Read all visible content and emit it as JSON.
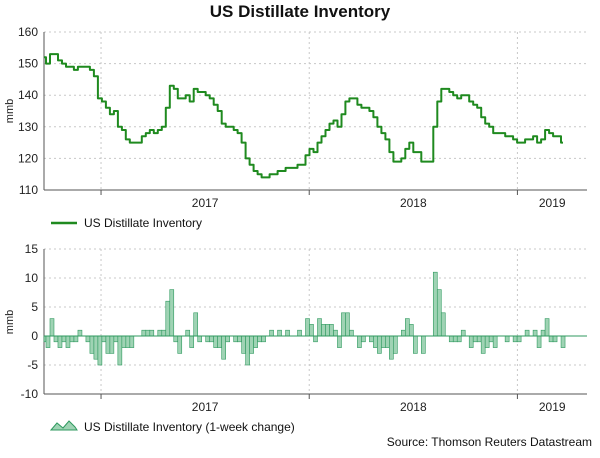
{
  "title": "US Distillate Inventory",
  "source": "Source: Thomson Reuters Datastream",
  "colors": {
    "line": "#1f8a1f",
    "bar_fill": "#9fd3b4",
    "bar_stroke": "#2f9a5f",
    "grid": "#c8c8c8",
    "axis": "#555555"
  },
  "chart_data": [
    {
      "type": "line",
      "title": "US Distillate Inventory",
      "ylabel": "mmb",
      "ylim": [
        110,
        160
      ],
      "yticks": [
        110,
        120,
        130,
        140,
        150,
        160
      ],
      "x_tick_labels": [
        "2017",
        "2018",
        "2019"
      ],
      "grid": true,
      "legend_position": "bottom-left",
      "series": [
        {
          "name": "US Distillate Inventory",
          "x_start": "2016-09-23",
          "x_step_days": 7,
          "values": [
            152,
            150,
            153,
            153,
            151,
            150,
            149,
            149,
            148,
            149,
            149,
            149,
            148,
            146,
            139,
            138,
            136,
            134,
            135,
            130,
            129,
            126,
            125,
            125,
            125,
            127,
            128,
            129,
            128,
            129,
            130,
            136,
            143,
            142,
            139,
            139,
            140,
            138,
            142,
            141,
            141,
            140,
            139,
            137,
            135,
            131,
            130,
            130,
            129,
            128,
            125,
            120,
            118,
            116,
            115,
            114,
            114,
            115,
            115,
            116,
            116,
            117,
            117,
            117,
            118,
            118,
            121,
            123,
            122,
            125,
            127,
            129,
            131,
            132,
            130,
            134,
            138,
            139,
            139,
            137,
            136,
            136,
            135,
            133,
            130,
            128,
            126,
            122,
            119,
            119,
            120,
            123,
            125,
            122,
            122,
            119,
            119,
            119,
            130,
            138,
            142,
            142,
            141,
            140,
            139,
            140,
            140,
            138,
            137,
            136,
            133,
            131,
            130,
            128,
            128,
            128,
            127,
            127,
            126,
            125,
            125,
            126,
            126,
            127,
            125,
            126,
            129,
            128,
            127,
            127,
            125
          ]
        }
      ]
    },
    {
      "type": "area",
      "ylabel": "mmb",
      "ylim": [
        -10,
        15
      ],
      "yticks": [
        -10,
        -5,
        0,
        5,
        10,
        15
      ],
      "x_tick_labels": [
        "2017",
        "2018",
        "2019"
      ],
      "grid": true,
      "legend_position": "bottom-left",
      "series": [
        {
          "name": "US Distillate Inventory (1-week change)",
          "x_start": "2016-09-23",
          "x_step_days": 7,
          "values": [
            -1,
            -2,
            3,
            -1,
            -2,
            -1,
            -2,
            -1,
            -1,
            1,
            0,
            -1,
            -3,
            -4,
            -5,
            -1,
            -3,
            -3,
            -1,
            -5,
            -2,
            -2,
            -2,
            0,
            0,
            1,
            1,
            1,
            0,
            1,
            1,
            6,
            8,
            -1,
            -3,
            0,
            1,
            -2,
            4,
            -1,
            0,
            -1,
            -1,
            -2,
            -2,
            -4,
            -1,
            0,
            -1,
            -1,
            -3,
            -5,
            -3,
            -2,
            -1,
            -1,
            0,
            1,
            0,
            1,
            0,
            1,
            0,
            0,
            1,
            0,
            3,
            2,
            -1,
            3,
            2,
            2,
            2,
            1,
            -2,
            4,
            4,
            1,
            0,
            -2,
            -1,
            0,
            -1,
            -2,
            -3,
            -2,
            -2,
            -4,
            -3,
            0,
            1,
            3,
            2,
            -3,
            0,
            -3,
            0,
            0,
            11,
            8,
            4,
            0,
            -1,
            -1,
            -1,
            1,
            0,
            -2,
            -1,
            -1,
            -3,
            -2,
            -1,
            -2,
            0,
            0,
            -1,
            0,
            -1,
            -1,
            0,
            1,
            0,
            1,
            -2,
            1,
            3,
            -1,
            -1,
            0,
            -2
          ]
        }
      ]
    }
  ]
}
